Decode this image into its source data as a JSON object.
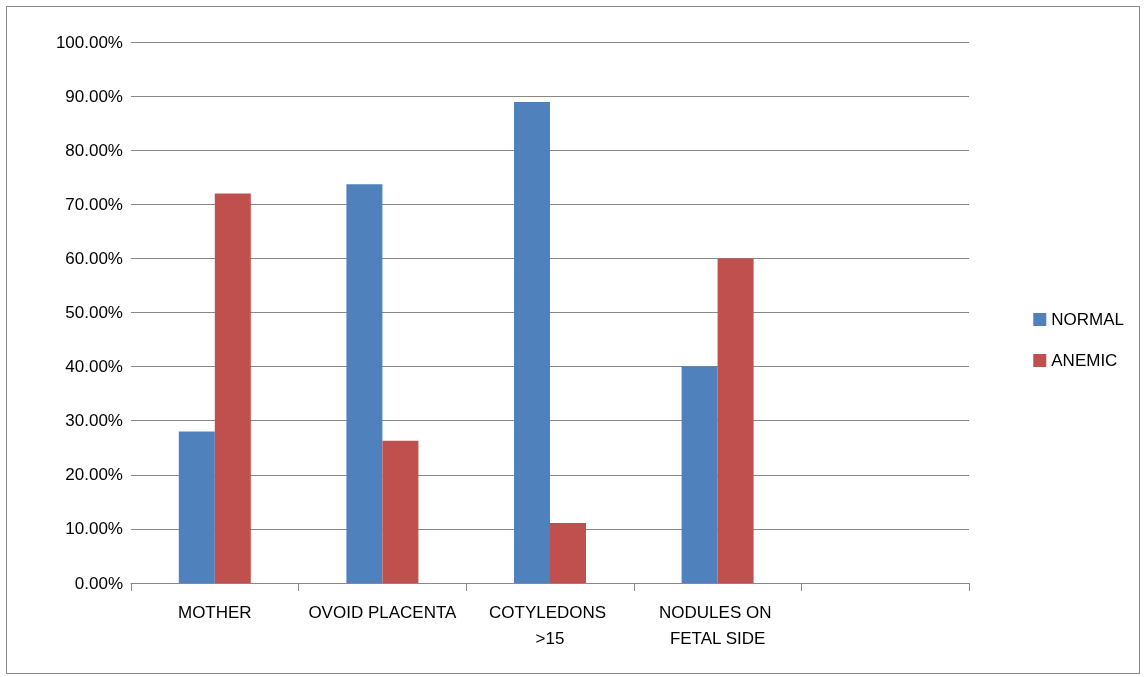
{
  "chart_data": {
    "type": "bar",
    "categories": [
      "MOTHER",
      "OVOID PLACENTA",
      "COTYLEDONS >15",
      "NODULES ON FETAL SIDE",
      null
    ],
    "series": [
      {
        "name": "NORMAL",
        "color": "#4f81bd",
        "values": [
          28,
          73.7,
          88.9,
          40,
          null
        ]
      },
      {
        "name": "ANEMIC",
        "color": "#c0504d",
        "values": [
          72,
          26.3,
          11.1,
          60,
          null
        ]
      }
    ],
    "ylim": [
      0,
      100
    ],
    "yticks": [
      {
        "value": 0,
        "label": "0.00%"
      },
      {
        "value": 10,
        "label": "10.00%"
      },
      {
        "value": 20,
        "label": "20.00%"
      },
      {
        "value": 30,
        "label": "30.00%"
      },
      {
        "value": 40,
        "label": "40.00%"
      },
      {
        "value": 50,
        "label": "50.00%"
      },
      {
        "value": 60,
        "label": "60.00%"
      },
      {
        "value": 70,
        "label": "70.00%"
      },
      {
        "value": 80,
        "label": "80.00%"
      },
      {
        "value": 90,
        "label": "90.00%"
      },
      {
        "value": 100,
        "label": "100.00%"
      }
    ],
    "grid": "y",
    "legend": "right"
  }
}
